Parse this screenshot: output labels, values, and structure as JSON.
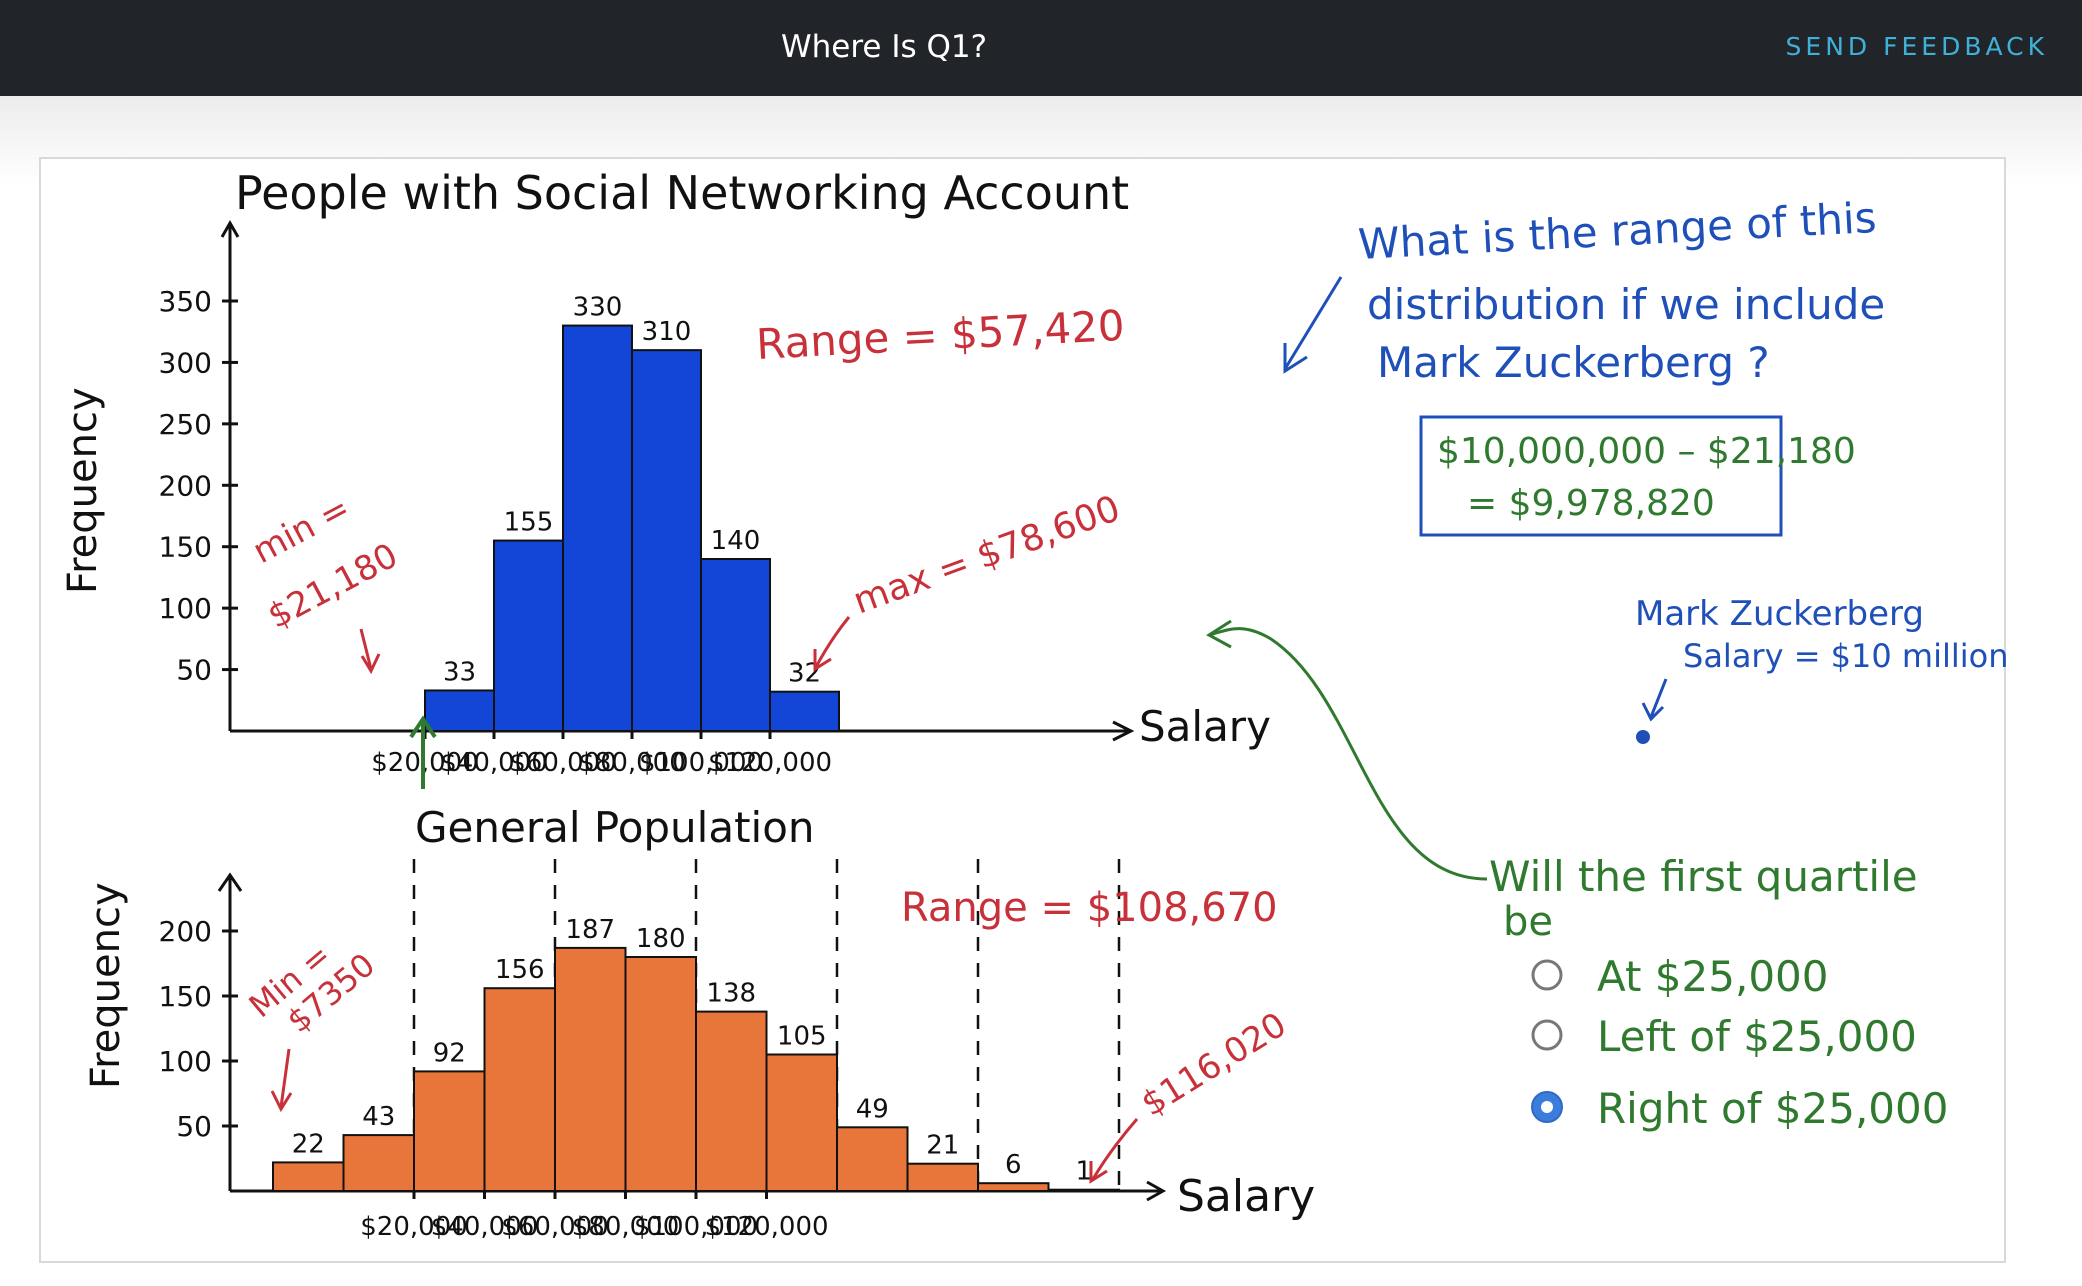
{
  "header": {
    "title": "Where Is Q1?",
    "feedback_label": "SEND FEEDBACK"
  },
  "colors": {
    "header_bg": "#212529",
    "feedback": "#3fb1d8",
    "blue_bars": "#1346d6",
    "orange_bars": "#e8763a",
    "red_notes": "#c8303a",
    "green_notes": "#2f7a2f",
    "blue_notes": "#1f4fb8",
    "selected_radio": "#3b7ddb"
  },
  "chart_data": [
    {
      "type": "bar",
      "title": "People with Social Networking Account",
      "ylabel": "Frequency",
      "xlabel": "Salary",
      "ylim": [
        0,
        350
      ],
      "yticks": [
        "350",
        "300",
        "250",
        "200",
        "150",
        "100",
        "50"
      ],
      "xticks": [
        "$20,000",
        "$40,000",
        "$60,000",
        "$80,000",
        "$100,000",
        "$120,000"
      ],
      "bins": [
        {
          "from": 20000,
          "to": 30000,
          "value": 33,
          "label": "33"
        },
        {
          "from": 30000,
          "to": 40000,
          "value": 155,
          "label": "155"
        },
        {
          "from": 40000,
          "to": 50000,
          "value": 330,
          "label": "330"
        },
        {
          "from": 50000,
          "to": 60000,
          "value": 310,
          "label": "310"
        },
        {
          "from": 60000,
          "to": 70000,
          "value": 140,
          "label": "140"
        },
        {
          "from": 70000,
          "to": 80000,
          "value": 32,
          "label": "32"
        }
      ],
      "annotations": {
        "range": "Range = $57,420",
        "min_line1": "min =",
        "min_line2": "$21,180",
        "max": "max = $78,600"
      }
    },
    {
      "type": "bar",
      "title": "General Population",
      "ylabel": "Frequency",
      "xlabel": "Salary",
      "ylim": [
        0,
        200
      ],
      "yticks": [
        "200",
        "150",
        "100",
        "50"
      ],
      "xticks": [
        "$20,000",
        "$40,000",
        "$60,000",
        "$80,000",
        "$100,000",
        "$120,000"
      ],
      "bins": [
        {
          "from": 0,
          "to": 10000,
          "value": 22,
          "label": "22"
        },
        {
          "from": 10000,
          "to": 20000,
          "value": 43,
          "label": "43"
        },
        {
          "from": 20000,
          "to": 30000,
          "value": 92,
          "label": "92"
        },
        {
          "from": 30000,
          "to": 40000,
          "value": 156,
          "label": "156"
        },
        {
          "from": 40000,
          "to": 50000,
          "value": 187,
          "label": "187"
        },
        {
          "from": 50000,
          "to": 60000,
          "value": 180,
          "label": "180"
        },
        {
          "from": 60000,
          "to": 70000,
          "value": 138,
          "label": "138"
        },
        {
          "from": 70000,
          "to": 80000,
          "value": 105,
          "label": "105"
        },
        {
          "from": 80000,
          "to": 90000,
          "value": 49,
          "label": "49"
        },
        {
          "from": 90000,
          "to": 100000,
          "value": 21,
          "label": "21"
        },
        {
          "from": 100000,
          "to": 110000,
          "value": 6,
          "label": "6"
        },
        {
          "from": 110000,
          "to": 120000,
          "value": 1,
          "label": "1"
        }
      ],
      "annotations": {
        "range": "Range = $108,670",
        "min_line1": "Min =",
        "min_line2": "$7350",
        "max": "$116,020"
      }
    }
  ],
  "notes": {
    "question_lines": [
      "What is the range of this",
      "distribution if we include",
      "Mark Zuckerberg ?"
    ],
    "answer_lines": [
      "$10,000,000 – $21,180",
      "= $9,978,820"
    ],
    "zuck_lines": [
      "Mark Zuckerberg",
      "Salary = $10 million"
    ],
    "quiz_lines": [
      "Will the first quartile",
      "be"
    ],
    "options": [
      {
        "label": "At $25,000",
        "selected": false
      },
      {
        "label": "Left of $25,000",
        "selected": false
      },
      {
        "label": "Right of $25,000",
        "selected": true
      }
    ]
  }
}
